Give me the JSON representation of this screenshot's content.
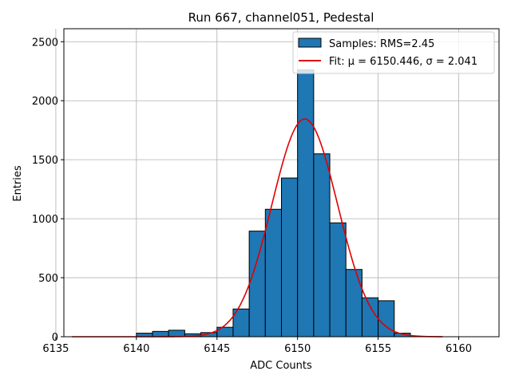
{
  "chart_data": {
    "type": "bar",
    "title": "Run 667, channel051, Pedestal",
    "xlabel": "ADC Counts",
    "ylabel": "Entries",
    "xlim": [
      6135.5,
      6162.5
    ],
    "ylim": [
      0,
      2610
    ],
    "xticks": [
      6135,
      6140,
      6145,
      6150,
      6155,
      6160
    ],
    "yticks": [
      0,
      500,
      1000,
      1500,
      2000,
      2500
    ],
    "grid": true,
    "legend_position": "top-right",
    "bin_width": 1,
    "bins": {
      "left_edges": [
        6140,
        6141,
        6142,
        6143,
        6144,
        6145,
        6146,
        6147,
        6148,
        6149,
        6150,
        6151,
        6152,
        6153,
        6154,
        6155,
        6156
      ],
      "counts": [
        30,
        45,
        55,
        25,
        35,
        80,
        235,
        895,
        1080,
        1345,
        2260,
        1550,
        965,
        570,
        330,
        305,
        30
      ]
    },
    "bar_color": "#1f77b4",
    "fit": {
      "type": "gaussian",
      "mu": 6150.446,
      "sigma": 2.041,
      "amplitude": 1845,
      "x_range": [
        6136,
        6159
      ],
      "color": "#e00000"
    },
    "legend": [
      {
        "label": "Samples: RMS=2.45",
        "kind": "patch",
        "color": "#1f77b4"
      },
      {
        "label": "Fit: μ = 6150.446, σ = 2.041",
        "kind": "line",
        "color": "#e00000"
      }
    ]
  }
}
